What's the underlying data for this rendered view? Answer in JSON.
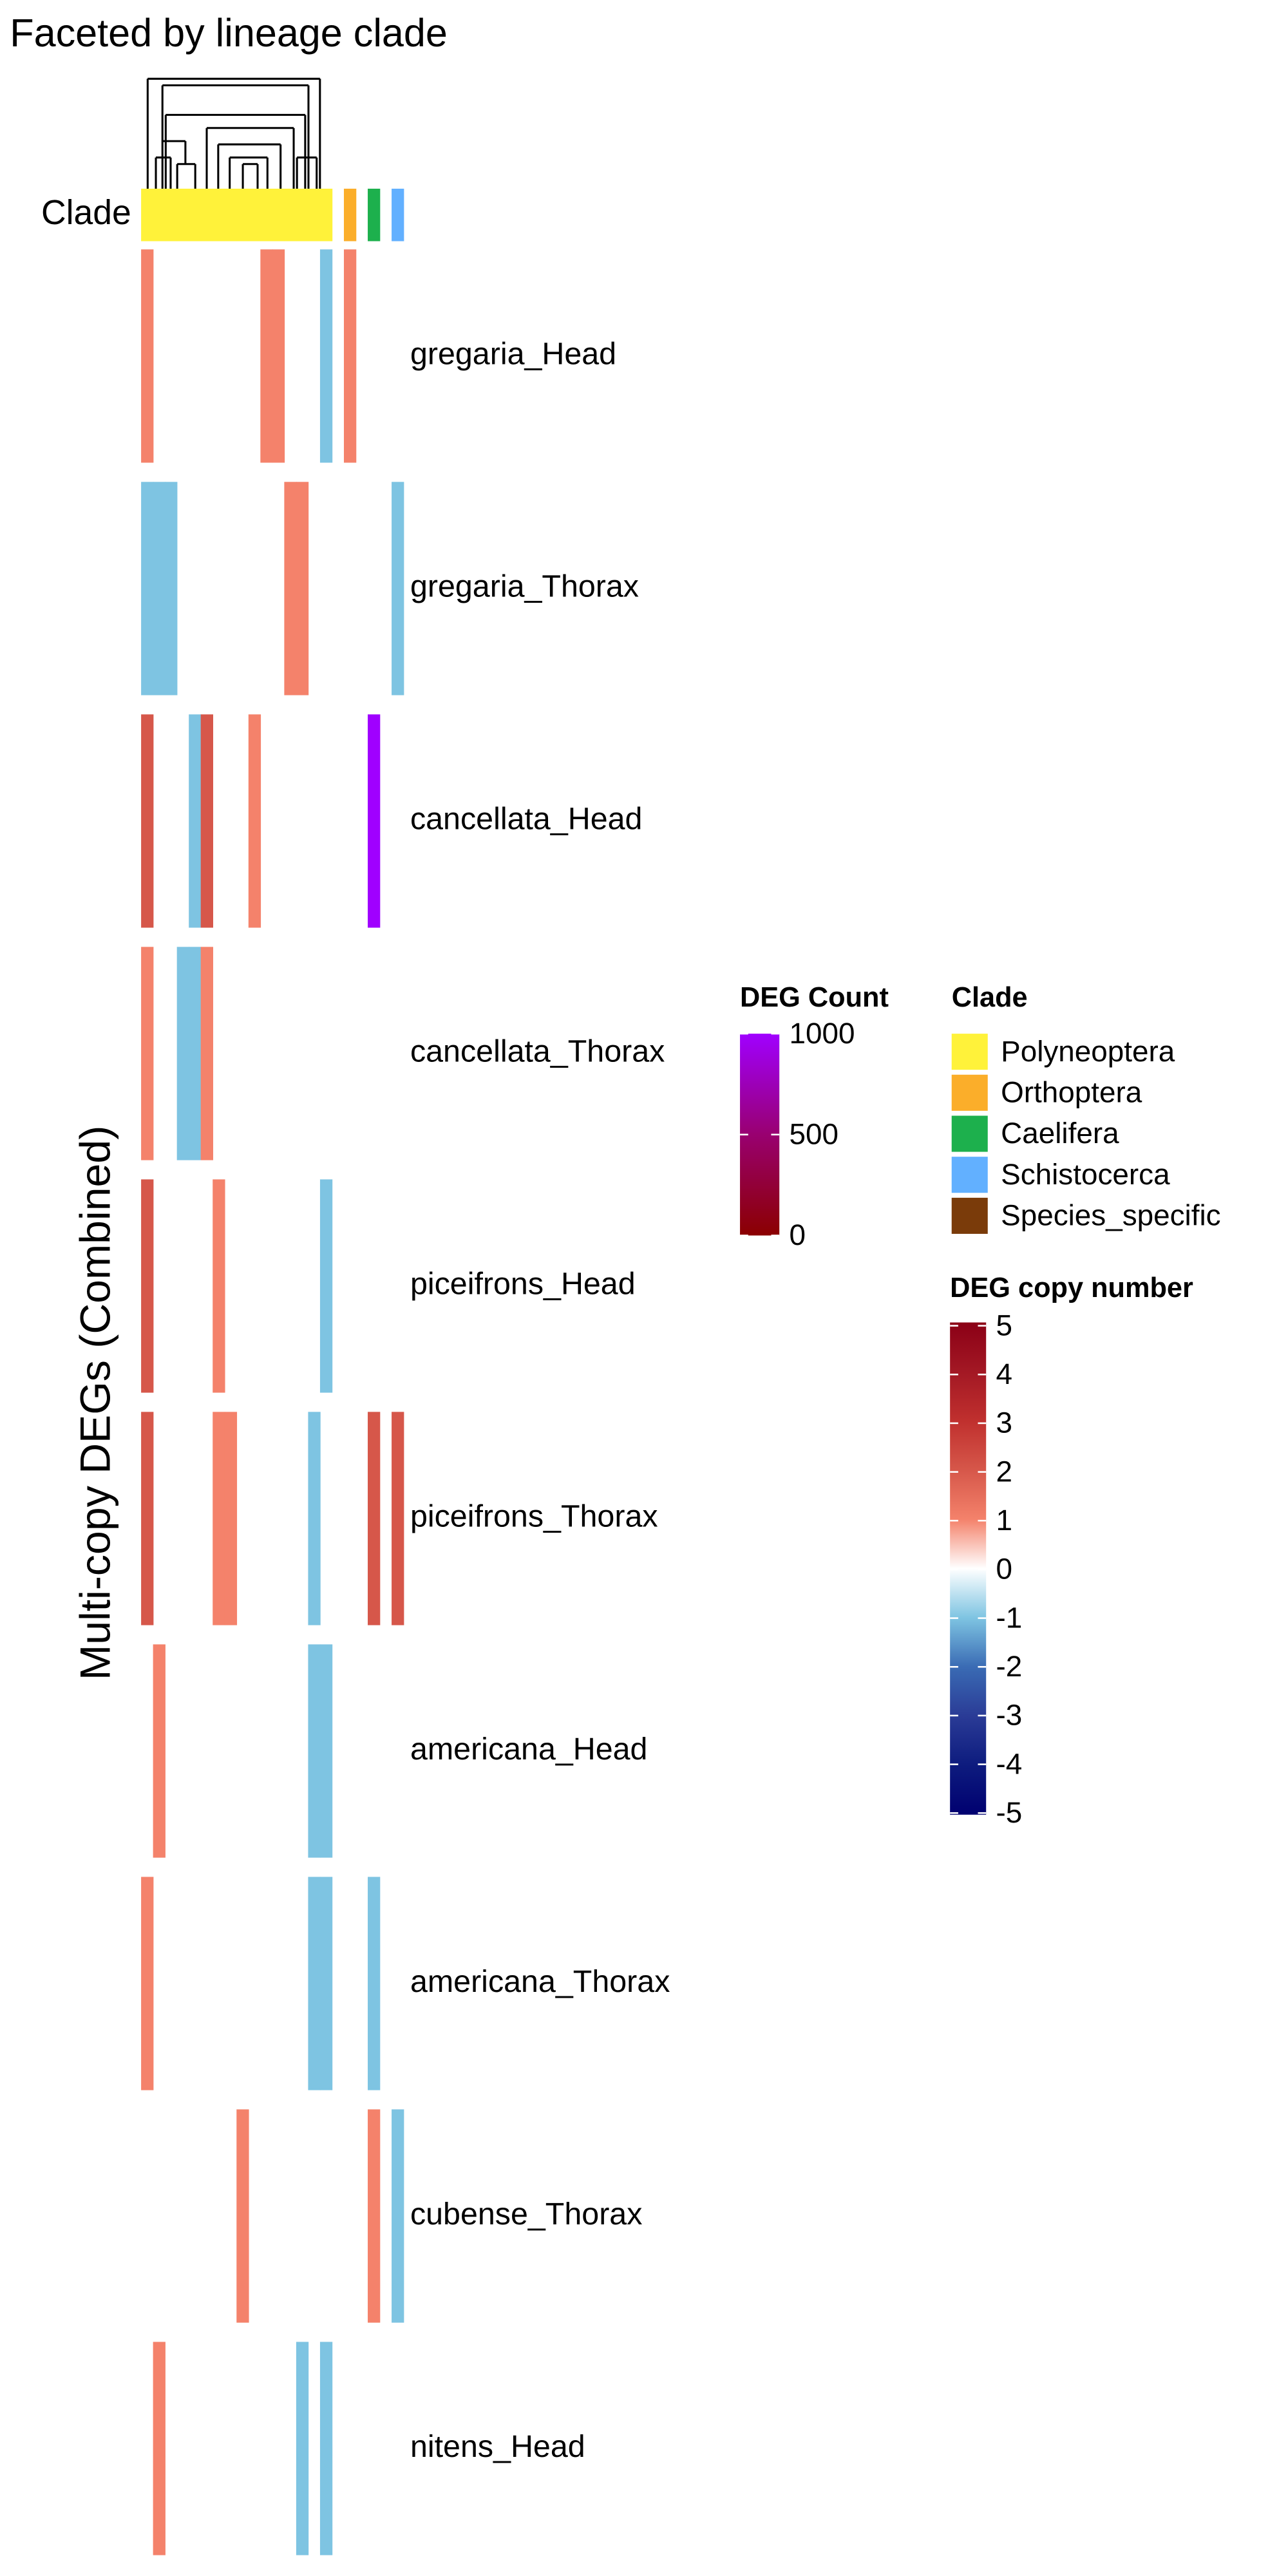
{
  "chart_data": {
    "type": "heatmap",
    "title": "Faceted by lineage clade",
    "y_label": "Multi-copy DEGs (Combined)",
    "clade_label": "Clade",
    "rows": [
      "gregaria_Head",
      "gregaria_Thorax",
      "cancellata_Head",
      "cancellata_Thorax",
      "piceifrons_Head",
      "piceifrons_Thorax",
      "americana_Head",
      "americana_Thorax",
      "cubense_Thorax",
      "nitens_Head"
    ],
    "column_clades": [
      0,
      0,
      0,
      0,
      0,
      0,
      0,
      0,
      0,
      0,
      0,
      0,
      0,
      0,
      0,
      0,
      null,
      1,
      null,
      2,
      null,
      3
    ],
    "values": [
      [
        1,
        null,
        null,
        null,
        null,
        null,
        null,
        null,
        null,
        null,
        1,
        1,
        null,
        null,
        null,
        -1,
        null,
        1,
        null,
        null,
        null,
        null
      ],
      [
        -1,
        -1,
        -1,
        null,
        null,
        null,
        null,
        null,
        null,
        null,
        null,
        null,
        1,
        1,
        null,
        null,
        null,
        null,
        null,
        null,
        null,
        -1
      ],
      [
        2,
        null,
        null,
        null,
        -1,
        2,
        null,
        null,
        null,
        1,
        null,
        null,
        null,
        null,
        null,
        null,
        null,
        null,
        null,
        null,
        null,
        null
      ],
      [
        1,
        null,
        null,
        -1,
        -1,
        1,
        null,
        null,
        null,
        null,
        null,
        null,
        null,
        null,
        null,
        null,
        null,
        null,
        null,
        null,
        null,
        null
      ],
      [
        2,
        null,
        null,
        null,
        null,
        null,
        1,
        null,
        null,
        null,
        null,
        null,
        null,
        null,
        null,
        -1,
        null,
        null,
        null,
        null,
        null,
        null
      ],
      [
        2,
        null,
        null,
        null,
        null,
        null,
        1,
        1,
        null,
        null,
        null,
        null,
        null,
        null,
        -1,
        null,
        null,
        null,
        null,
        2,
        null,
        2
      ],
      [
        null,
        1,
        null,
        null,
        null,
        null,
        null,
        null,
        null,
        null,
        null,
        null,
        null,
        null,
        -1,
        -1,
        null,
        null,
        null,
        null,
        null,
        null
      ],
      [
        1,
        null,
        null,
        null,
        null,
        null,
        null,
        null,
        null,
        null,
        null,
        null,
        null,
        null,
        -1,
        -1,
        null,
        null,
        null,
        -1,
        null,
        null
      ],
      [
        null,
        null,
        null,
        null,
        null,
        null,
        null,
        null,
        1,
        null,
        null,
        null,
        null,
        null,
        null,
        null,
        null,
        null,
        null,
        1,
        null,
        -1
      ],
      [
        null,
        1,
        null,
        null,
        null,
        null,
        null,
        null,
        null,
        null,
        null,
        null,
        null,
        -1,
        null,
        -1,
        null,
        null,
        null,
        null,
        null,
        null
      ]
    ],
    "deg_count": {
      "title": "DEG Count",
      "lim": [
        0,
        1000
      ],
      "ticks": [
        0,
        500,
        1000
      ],
      "colors": [
        "#8b0000",
        "#990070",
        "#a000ff"
      ],
      "cells": [
        {
          "row": 2,
          "col": 19,
          "value": 1000
        }
      ]
    },
    "clade_legend": {
      "title": "Clade",
      "items": [
        {
          "name": "Polyneoptera",
          "color": "#fff23a"
        },
        {
          "name": "Orthoptera",
          "color": "#fbae2a"
        },
        {
          "name": "Caelifera",
          "color": "#1db04d"
        },
        {
          "name": "Schistocerca",
          "color": "#62b0ff"
        },
        {
          "name": "Species_specific",
          "color": "#7a3b0a"
        }
      ]
    },
    "copy_number_scale": {
      "title": "DEG copy number",
      "lim": [
        -5,
        5
      ],
      "ticks": [
        5,
        4,
        3,
        2,
        1,
        0,
        -1,
        -2,
        -3,
        -4,
        -5
      ],
      "colors": [
        "#000070",
        "#0d1b7e",
        "#2a3b96",
        "#3a6bb4",
        "#7ec4e2",
        "#ffffff",
        "#f4826b",
        "#d6574a",
        "#c0302e",
        "#a31824",
        "#8b0016"
      ]
    }
  }
}
